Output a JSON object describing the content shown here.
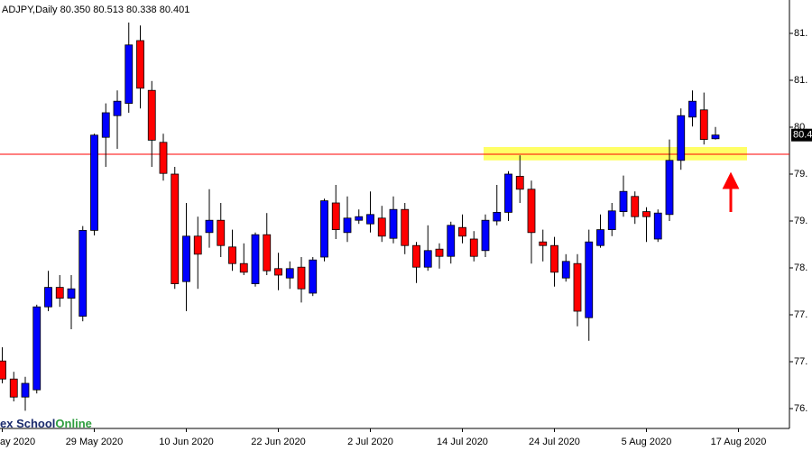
{
  "chart_data": {
    "type": "candlestick",
    "title": "ADJPY,Daily  80.350 80.513 80.338 80.401",
    "categories": [
      "ay 2020",
      null,
      null,
      null,
      null,
      null,
      null,
      null,
      "29 May 2020",
      null,
      null,
      null,
      null,
      null,
      null,
      null,
      "10 Jun 2020",
      null,
      null,
      null,
      null,
      null,
      null,
      null,
      "22 Jun 2020",
      null,
      null,
      null,
      null,
      null,
      null,
      null,
      "2 Jul 2020",
      null,
      null,
      null,
      null,
      null,
      null,
      null,
      "14 Jul 2020",
      null,
      null,
      null,
      null,
      null,
      null,
      null,
      "24 Jul 2020",
      null,
      null,
      null,
      null,
      null,
      null,
      null,
      "5 Aug 2020",
      null,
      null,
      null,
      null,
      null,
      null,
      null,
      "17 Aug 2020"
    ],
    "open": [
      77.27,
      77.02,
      76.77,
      76.87,
      78.02,
      78.29,
      78.14,
      77.89,
      79.08,
      80.37,
      80.67,
      80.84,
      81.71,
      81.02,
      80.3,
      79.86,
      78.37,
      79.0,
      79.05,
      79.22,
      78.85,
      78.62,
      78.34,
      79.02,
      78.55,
      78.42,
      78.57,
      78.21,
      78.71,
      79.46,
      79.05,
      79.22,
      79.17,
      79.25,
      78.97,
      79.37,
      78.87,
      78.57,
      78.82,
      78.72,
      79.12,
      78.96,
      78.8,
      79.21,
      79.33,
      79.83,
      79.65,
      78.92,
      78.87,
      78.42,
      78.62,
      77.87,
      78.87,
      79.09,
      79.34,
      79.55,
      79.34,
      78.96,
      79.3,
      80.05,
      80.65,
      80.75,
      80.35,
      null,
      null
    ],
    "high": [
      77.46,
      77.12,
      77.05,
      78.05,
      78.52,
      78.46,
      78.46,
      79.14,
      80.42,
      80.84,
      81.02,
      81.96,
      81.92,
      81.15,
      80.42,
      79.96,
      79.46,
      79.27,
      79.65,
      79.46,
      79.09,
      78.9,
      79.05,
      79.32,
      78.77,
      78.65,
      78.71,
      78.71,
      79.52,
      79.71,
      79.55,
      79.37,
      79.62,
      79.42,
      79.55,
      79.46,
      78.92,
      79.15,
      78.9,
      79.2,
      79.3,
      79.07,
      79.3,
      79.71,
      79.9,
      80.12,
      79.77,
      79.09,
      78.99,
      78.75,
      78.75,
      79.09,
      79.3,
      79.46,
      79.84,
      79.62,
      79.4,
      79.37,
      80.34,
      80.77,
      81.02,
      80.99,
      80.513,
      null,
      null
    ],
    "low": [
      76.96,
      76.71,
      76.58,
      76.82,
      77.96,
      78.02,
      77.71,
      77.82,
      79.01,
      79.96,
      80.21,
      80.71,
      80.77,
      79.96,
      79.77,
      78.27,
      77.96,
      78.27,
      78.84,
      78.71,
      78.52,
      78.46,
      78.3,
      78.46,
      78.25,
      78.27,
      78.08,
      78.17,
      78.65,
      78.96,
      78.92,
      79.17,
      79.05,
      78.92,
      78.9,
      78.75,
      78.35,
      78.52,
      78.55,
      78.62,
      78.9,
      78.65,
      78.71,
      79.15,
      79.21,
      79.46,
      78.62,
      78.65,
      78.3,
      78.37,
      77.75,
      77.55,
      78.84,
      79.0,
      79.27,
      79.17,
      78.92,
      78.92,
      79.21,
      79.92,
      80.52,
      80.27,
      80.338,
      null,
      null
    ],
    "close": [
      77.02,
      76.77,
      76.96,
      78.02,
      78.29,
      78.14,
      78.27,
      79.08,
      80.4,
      80.71,
      80.87,
      81.65,
      81.05,
      80.33,
      79.87,
      78.34,
      79.0,
      78.75,
      79.22,
      78.87,
      78.62,
      78.5,
      79.02,
      78.52,
      78.46,
      78.55,
      78.27,
      78.67,
      79.49,
      79.09,
      79.25,
      79.27,
      79.3,
      79.0,
      79.37,
      78.87,
      78.57,
      78.8,
      78.72,
      79.15,
      79.0,
      78.72,
      79.22,
      79.33,
      79.86,
      79.65,
      79.05,
      78.87,
      78.5,
      78.65,
      77.96,
      78.92,
      79.09,
      79.35,
      79.62,
      79.27,
      79.27,
      79.32,
      80.05,
      80.67,
      80.87,
      80.34,
      80.401,
      null,
      null
    ],
    "up_color": "#0000ff",
    "down_color": "#ff0000",
    "ylim": [
      76.335,
      82.2725
    ],
    "yticks": [
      {
        "value": 81.81,
        "label": "81."
      },
      {
        "value": 81.16,
        "label": "81."
      },
      {
        "value": 80.51,
        "label": "80."
      },
      {
        "value": 79.86,
        "label": "79."
      },
      {
        "value": 79.21,
        "label": "79."
      },
      {
        "value": 78.56,
        "label": "78."
      },
      {
        "value": 77.91,
        "label": "77."
      },
      {
        "value": 77.26,
        "label": "77."
      },
      {
        "value": 76.61,
        "label": "76."
      }
    ],
    "price_label": {
      "value": 80.401,
      "label": "80.4"
    },
    "hline": {
      "value": 80.135,
      "color": "#ff0000"
    },
    "zone": {
      "low": 80.05,
      "high": 80.235,
      "color": "#ffff66"
    }
  },
  "logo": {
    "text": "ex School",
    "highlight": "Online"
  }
}
